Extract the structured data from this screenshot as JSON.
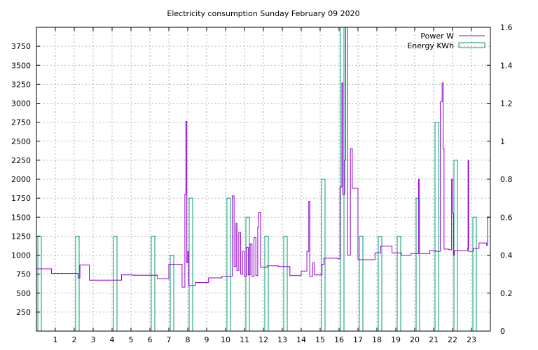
{
  "chart_data": {
    "type": "line",
    "title": "Electricity consumption Sunday February 09 2020",
    "x_ticks": [
      1,
      2,
      3,
      4,
      5,
      6,
      7,
      8,
      9,
      10,
      11,
      12,
      13,
      14,
      15,
      16,
      17,
      18,
      19,
      20,
      21,
      22,
      23
    ],
    "xlim": [
      0,
      24
    ],
    "ylim_left": [
      0,
      4000
    ],
    "ylim_right": [
      0,
      1.6
    ],
    "y_ticks_left": [
      250,
      500,
      750,
      1000,
      1250,
      1500,
      1750,
      2000,
      2250,
      2500,
      2750,
      3000,
      3250,
      3500,
      3750
    ],
    "y_ticks_right": [
      "0",
      "0.2",
      "0.4",
      "0.6",
      "0.8",
      "1",
      "1.2",
      "1.4",
      "1.6"
    ],
    "grid": true,
    "legend_position": "top-right",
    "colors": {
      "power": "#9400d3",
      "energy": "#009e73",
      "grid": "#a0a0a0",
      "axis": "#000000"
    },
    "series": [
      {
        "name": "Power W",
        "axis": "left",
        "style": "steps",
        "points": [
          [
            0.0,
            820
          ],
          [
            0.8,
            760
          ],
          [
            2.2,
            700
          ],
          [
            2.3,
            870
          ],
          [
            2.8,
            670
          ],
          [
            4.5,
            740
          ],
          [
            5.1,
            735
          ],
          [
            6.4,
            690
          ],
          [
            7.0,
            880
          ],
          [
            7.7,
            580
          ],
          [
            7.85,
            1800
          ],
          [
            7.9,
            2760
          ],
          [
            7.95,
            900
          ],
          [
            8.0,
            1050
          ],
          [
            8.05,
            600
          ],
          [
            8.4,
            640
          ],
          [
            9.1,
            700
          ],
          [
            9.8,
            720
          ],
          [
            10.35,
            1780
          ],
          [
            10.45,
            850
          ],
          [
            10.55,
            1420
          ],
          [
            10.6,
            800
          ],
          [
            10.7,
            1300
          ],
          [
            10.8,
            750
          ],
          [
            10.9,
            1050
          ],
          [
            11.0,
            720
          ],
          [
            11.1,
            1100
          ],
          [
            11.2,
            740
          ],
          [
            11.3,
            1150
          ],
          [
            11.4,
            720
          ],
          [
            11.5,
            1230
          ],
          [
            11.6,
            730
          ],
          [
            11.7,
            1370
          ],
          [
            11.75,
            1560
          ],
          [
            11.85,
            840
          ],
          [
            12.2,
            860
          ],
          [
            12.8,
            850
          ],
          [
            13.4,
            730
          ],
          [
            14.0,
            790
          ],
          [
            14.3,
            1050
          ],
          [
            14.4,
            1710
          ],
          [
            14.45,
            720
          ],
          [
            14.6,
            900
          ],
          [
            14.7,
            740
          ],
          [
            15.1,
            880
          ],
          [
            15.2,
            960
          ],
          [
            15.95,
            950
          ],
          [
            16.05,
            1900
          ],
          [
            16.15,
            3270
          ],
          [
            16.2,
            1800
          ],
          [
            16.3,
            2250
          ],
          [
            16.35,
            4000
          ],
          [
            16.45,
            1000
          ],
          [
            16.6,
            2400
          ],
          [
            16.7,
            1880
          ],
          [
            17.0,
            940
          ],
          [
            17.9,
            1030
          ],
          [
            18.2,
            1120
          ],
          [
            18.8,
            1030
          ],
          [
            19.3,
            1000
          ],
          [
            19.8,
            1020
          ],
          [
            20.2,
            2000
          ],
          [
            20.25,
            1020
          ],
          [
            20.8,
            1060
          ],
          [
            21.1,
            1050
          ],
          [
            21.35,
            3020
          ],
          [
            21.45,
            3270
          ],
          [
            21.5,
            2400
          ],
          [
            21.55,
            1080
          ],
          [
            21.8,
            1070
          ],
          [
            21.95,
            2000
          ],
          [
            22.0,
            1550
          ],
          [
            22.05,
            1000
          ],
          [
            22.1,
            1060
          ],
          [
            22.8,
            1090
          ],
          [
            22.82,
            2250
          ],
          [
            22.85,
            1050
          ],
          [
            23.1,
            1090
          ],
          [
            23.4,
            1160
          ],
          [
            23.8,
            1130
          ],
          [
            23.85,
            1500
          ],
          [
            24.0,
            1500
          ]
        ]
      },
      {
        "name": "Energy KWh",
        "axis": "right",
        "style": "impulse-boxes",
        "points": [
          [
            0,
            0.5
          ],
          [
            1,
            0.0
          ],
          [
            2,
            0.5
          ],
          [
            3,
            0.0
          ],
          [
            4,
            0.5
          ],
          [
            5,
            0.0
          ],
          [
            6,
            0.5
          ],
          [
            7,
            0.4
          ],
          [
            8,
            0.7
          ],
          [
            9,
            0.0
          ],
          [
            10,
            0.7
          ],
          [
            11,
            0.6
          ],
          [
            12,
            0.5
          ],
          [
            13,
            0.5
          ],
          [
            14,
            0.0
          ],
          [
            15,
            0.8
          ],
          [
            16,
            1.6
          ],
          [
            17,
            0.5
          ],
          [
            18,
            0.5
          ],
          [
            19,
            0.5
          ],
          [
            20,
            0.7
          ],
          [
            21,
            1.1
          ],
          [
            22,
            0.9
          ],
          [
            23,
            0.6
          ]
        ]
      }
    ]
  }
}
